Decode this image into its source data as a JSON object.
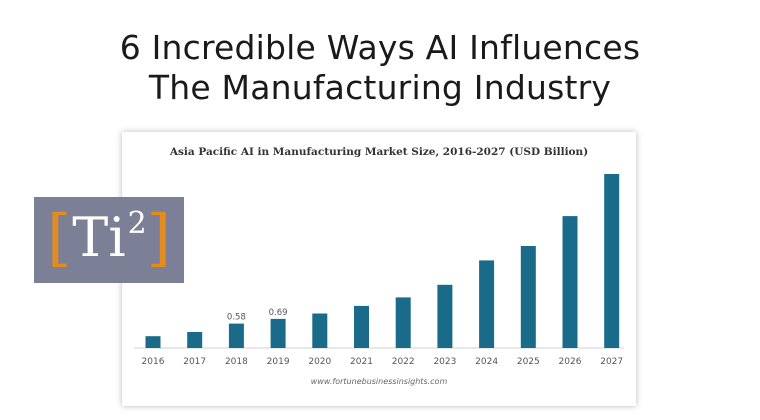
{
  "headline": {
    "line1": "6 Incredible Ways AI Influences",
    "line2": "The Manufacturing Industry"
  },
  "logo": {
    "open_bracket": "[",
    "text": "Ti",
    "superscript": "2",
    "close_bracket": "]",
    "bracket_color": "#e58a1f",
    "background_color": "#7b8096"
  },
  "chart_data": {
    "type": "bar",
    "title": "Asia Pacific AI in Manufacturing Market Size, 2016-2027 (USD Billion)",
    "source": "www.fortunebusinessinsights.com",
    "categories": [
      "2016",
      "2017",
      "2018",
      "2019",
      "2020",
      "2021",
      "2022",
      "2023",
      "2024",
      "2025",
      "2026",
      "2027"
    ],
    "values": [
      0.28,
      0.38,
      0.58,
      0.69,
      0.82,
      1.0,
      1.2,
      1.5,
      2.08,
      2.42,
      3.13,
      4.13
    ],
    "data_labels": {
      "2018": "0.58",
      "2019": "0.69"
    },
    "bar_color": "#1a6b8a",
    "grid": false,
    "legend": "none"
  }
}
